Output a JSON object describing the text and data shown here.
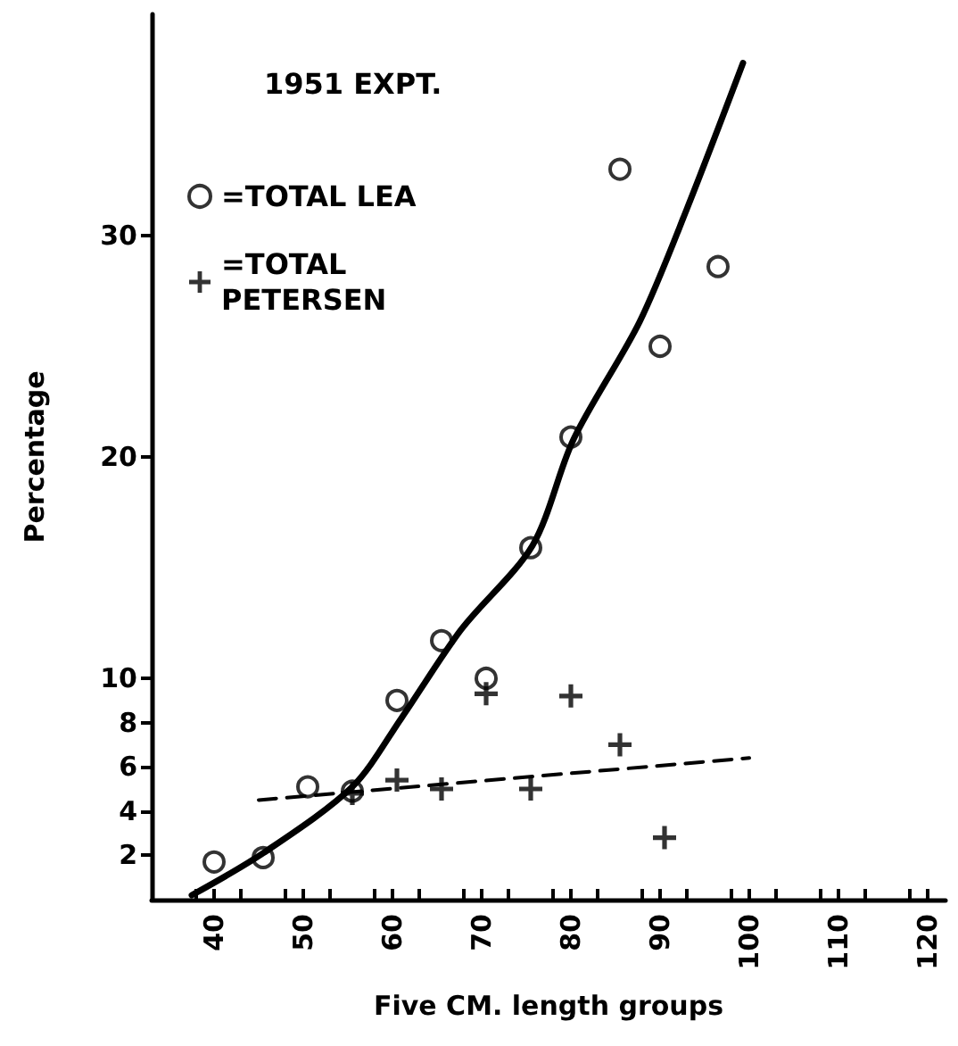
{
  "chart_data": {
    "type": "scatter",
    "legend_title": "1951 EXPT.",
    "xlabel": "Five CM. length groups",
    "ylabel": "Percentage",
    "xlim": [
      33,
      122
    ],
    "ylim": [
      0,
      40
    ],
    "xticks": [
      40,
      50,
      60,
      70,
      80,
      90,
      100,
      110,
      120,
      {
        "value": 38,
        "label": null
      },
      {
        "value": 43,
        "label": null
      },
      {
        "value": 48,
        "label": null
      },
      {
        "value": 53,
        "label": null
      },
      {
        "value": 58,
        "label": null
      },
      {
        "value": 63,
        "label": null
      },
      {
        "value": 68,
        "label": null
      },
      {
        "value": 73,
        "label": null
      },
      {
        "value": 78,
        "label": null
      },
      {
        "value": 83,
        "label": null
      },
      {
        "value": 88,
        "label": null
      },
      {
        "value": 93,
        "label": null
      },
      {
        "value": 98,
        "label": null
      },
      {
        "value": 103,
        "label": null
      },
      {
        "value": 108,
        "label": null
      },
      {
        "value": 113,
        "label": null
      },
      {
        "value": 118,
        "label": null
      }
    ],
    "yticks": [
      2,
      4,
      6,
      8,
      10,
      20,
      30
    ],
    "grid": false,
    "legend": "top left",
    "series": [
      {
        "name": "=TOTAL LEA",
        "color": "#000000",
        "marker": "circle",
        "x": [
          40,
          45.5,
          50.5,
          55.5,
          60.5,
          65.5,
          70.5,
          75.5,
          80,
          85.5,
          90,
          96.5
        ],
        "values": [
          1.7,
          1.9,
          5.1,
          4.9,
          9.0,
          11.7,
          10.0,
          15.9,
          20.9,
          33.0,
          25.0,
          28.6
        ]
      },
      {
        "name": "=TOTAL PETERSEN",
        "color": "#000000",
        "marker": "cross",
        "x": [
          55.5,
          60.5,
          65.5,
          70.5,
          75.5,
          80,
          85.5,
          90.5
        ],
        "values": [
          4.8,
          5.4,
          5.0,
          9.3,
          5.0,
          9.2,
          7.0,
          2.8
        ]
      },
      {
        "type": "line",
        "color": "#000000",
        "marker": "none",
        "line_style": "solid",
        "x": [
          37.5,
          45.5,
          55.5,
          61,
          67.7,
          75.7,
          80.3,
          87.7,
          93,
          99.3
        ],
        "values": [
          0.2,
          2.1,
          5.1,
          8.2,
          12.2,
          16.0,
          20.8,
          26.1,
          31.2,
          37.8
        ]
      },
      {
        "type": "line",
        "color": "#000000",
        "marker": "none",
        "line_style": "dashed",
        "x": [
          45,
          100
        ],
        "values": [
          4.5,
          6.4
        ]
      }
    ]
  }
}
